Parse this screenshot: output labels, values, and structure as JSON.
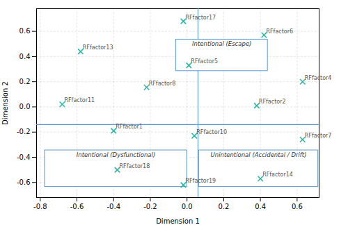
{
  "chart_data": {
    "type": "scatter",
    "xlabel": "Dimension 1",
    "ylabel": "Dimension 2",
    "xlim": [
      -0.82,
      0.72
    ],
    "ylim": [
      -0.72,
      0.78
    ],
    "xticks": [
      -0.8,
      -0.6,
      -0.4,
      -0.2,
      {
        "value": 0,
        "label": "0.0"
      },
      0.2,
      0.4,
      0.6
    ],
    "yticks": [
      -0.6,
      -0.4,
      -0.2,
      {
        "value": 0,
        "label": "0.0"
      },
      0.2,
      0.4,
      0.6
    ],
    "grid": true,
    "marker": "x",
    "color": "#2ab5a5",
    "points": [
      {
        "label": "RFfactor17",
        "x": -0.02,
        "y": 0.68
      },
      {
        "label": "RFfactor6",
        "x": 0.42,
        "y": 0.57
      },
      {
        "label": "RFfactor13",
        "x": -0.58,
        "y": 0.44
      },
      {
        "label": "RFfactor5",
        "x": 0.01,
        "y": 0.33
      },
      {
        "label": "RFfactor4",
        "x": 0.63,
        "y": 0.2
      },
      {
        "label": "RFfactor8",
        "x": -0.22,
        "y": 0.155
      },
      {
        "label": "RFfactor2",
        "x": 0.38,
        "y": 0.01
      },
      {
        "label": "RFfactor11",
        "x": -0.68,
        "y": 0.02
      },
      {
        "label": "RFfactor1",
        "x": -0.4,
        "y": -0.19
      },
      {
        "label": "RFfactor10",
        "x": 0.04,
        "y": -0.23
      },
      {
        "label": "RFfactor7",
        "x": 0.63,
        "y": -0.26
      },
      {
        "label": "RFfactor18",
        "x": -0.38,
        "y": -0.5
      },
      {
        "label": "RFfactor19",
        "x": -0.02,
        "y": -0.62
      },
      {
        "label": "RFfactor14",
        "x": 0.4,
        "y": -0.57
      }
    ],
    "reference_lines": [
      {
        "axis": "y",
        "value": -0.14,
        "color": "#5b9bd5"
      },
      {
        "axis": "x",
        "value": 0.06,
        "color": "#5b9bd5"
      }
    ],
    "boxes": [
      {
        "text": "Intentional (Escape)",
        "x0": -0.06,
        "y0": 0.285,
        "x1": 0.44,
        "y1": 0.535,
        "color": "#5b9bd5"
      },
      {
        "text": "Intentional (Dysfunctional)",
        "x0": -0.775,
        "y0": -0.635,
        "x1": 0.0,
        "y1": -0.345,
        "color": "#5b9bd5"
      },
      {
        "text": "Unintentional (Accidental / Drift)",
        "x0": 0.065,
        "y0": -0.635,
        "x1": 0.715,
        "y1": -0.345,
        "color": "#5b9bd5"
      }
    ]
  }
}
